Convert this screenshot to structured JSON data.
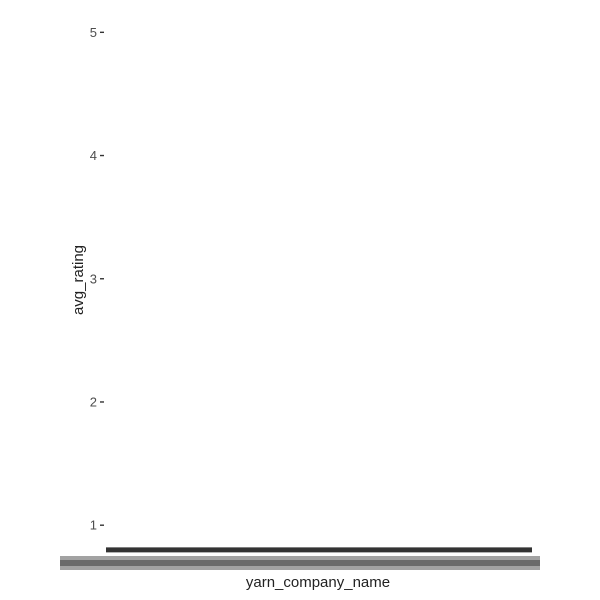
{
  "chart_data": {
    "type": "line",
    "title": "",
    "xlabel": "yarn_company_name",
    "ylabel": "avg_rating",
    "y_ticks": [
      "1",
      "2",
      "3",
      "4",
      "5"
    ],
    "ylim": [
      0.75,
      5.1
    ],
    "grid": false,
    "x_tick_labels_legible": false,
    "series": [
      {
        "values": [
          0.8,
          0.8
        ]
      }
    ],
    "colors": {
      "line": "#333333",
      "tick": "#333333",
      "text": "#4d4d4d",
      "label_band": "#555555"
    }
  }
}
